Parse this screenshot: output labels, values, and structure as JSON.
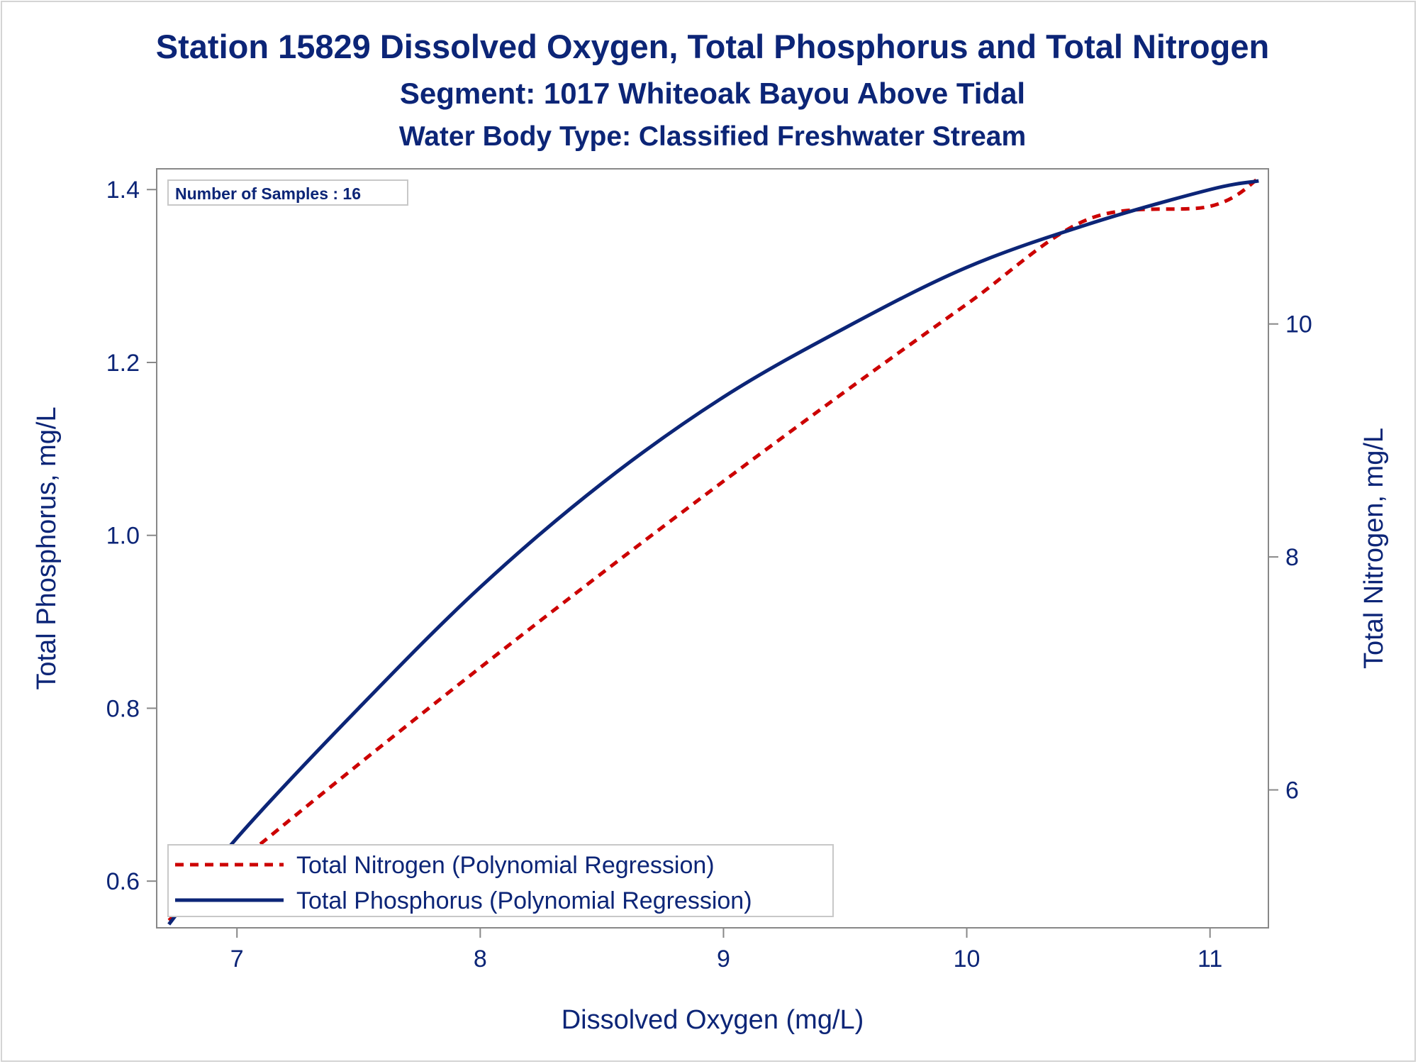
{
  "chart_data": {
    "type": "line",
    "title": "Station 15829  Dissolved Oxygen, Total Phosphorus and Total Nitrogen",
    "subtitle": "Segment: 1017  Whiteoak Bayou Above Tidal",
    "subtitle2": "Water Body Type: Classified Freshwater Stream",
    "xlabel": "Dissolved Oxygen (mg/L)",
    "ylabel": "Total Phosphorus, mg/L",
    "y2label": "Total Nitrogen, mg/L",
    "annotation": "Number of Samples : 16",
    "xlim": [
      6.67,
      11.24
    ],
    "ylim": [
      0.546,
      1.424
    ],
    "y2lim": [
      4.816,
      11.332
    ],
    "x_ticks": [
      "7",
      "8",
      "9",
      "10",
      "11"
    ],
    "y_ticks": [
      "0.6",
      "0.8",
      "1.0",
      "1.2",
      "1.4"
    ],
    "y2_ticks": [
      "6",
      "8",
      "10"
    ],
    "grid": false,
    "legend_position": "bottom-left",
    "series": [
      {
        "name": "Total Nitrogen (Polynomial Regression)",
        "axis": "right",
        "style": "dashed",
        "color": "#cc0000",
        "points": [
          [
            6.72,
            4.88
          ],
          [
            7.0,
            5.37
          ],
          [
            7.5,
            6.22
          ],
          [
            8.0,
            7.05
          ],
          [
            8.5,
            7.86
          ],
          [
            9.0,
            8.65
          ],
          [
            9.5,
            9.42
          ],
          [
            10.0,
            10.17
          ],
          [
            10.5,
            10.9
          ],
          [
            11.0,
            11.01
          ],
          [
            11.2,
            11.25
          ]
        ]
      },
      {
        "name": "Total Phosphorus (Polynomial Regression)",
        "axis": "left",
        "style": "solid",
        "color": "#0c2577",
        "points": [
          [
            6.72,
            0.55
          ],
          [
            7.0,
            0.65
          ],
          [
            7.5,
            0.8
          ],
          [
            8.0,
            0.94
          ],
          [
            8.5,
            1.06
          ],
          [
            9.0,
            1.16
          ],
          [
            9.5,
            1.24
          ],
          [
            10.0,
            1.31
          ],
          [
            10.5,
            1.36
          ],
          [
            11.0,
            1.4
          ],
          [
            11.2,
            1.41
          ]
        ]
      }
    ]
  },
  "colors": {
    "text": "#0c2577",
    "axis": "#888888",
    "nitrogen": "#cc0000",
    "phosphorus": "#0c2577"
  }
}
